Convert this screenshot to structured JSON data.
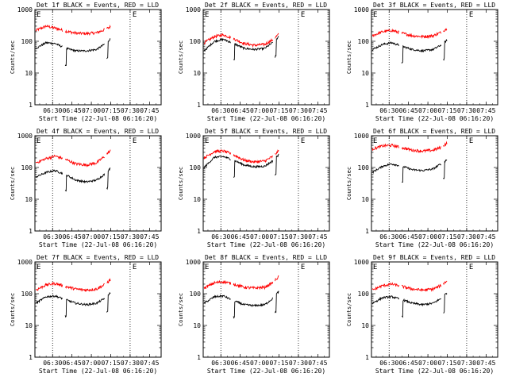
{
  "figure": {
    "ytick_labels": [
      "1",
      "10",
      "100",
      "1000"
    ],
    "xtick_labels": [
      "06:30",
      "06:45",
      "07:00",
      "07:15",
      "07:30",
      "07:45"
    ],
    "ylabel": "Counts/sec",
    "xlabel": "Start Time (22-Jul-08 06:16:20)",
    "e_marker": "E"
  },
  "colors": {
    "events": "#000000",
    "lld": "#ff0000",
    "frame": "#000000"
  },
  "chart_data": [
    {
      "type": "line",
      "title": "Det 1f BLACK = Events, RED = LLD",
      "xlabel": "Start Time (22-Jul-08 06:16:20)",
      "ylabel": "Counts/sec",
      "yscale": "log",
      "ylim": [
        1,
        1000
      ],
      "xlim": [
        "06:16:20",
        "07:54"
      ],
      "vlines": [
        "06:30",
        "07:30"
      ],
      "series": [
        {
          "name": "LLD",
          "color": "#ff0000",
          "x": [
            "06:17",
            "06:25",
            "06:32",
            "06:40",
            "06:48",
            "06:56",
            "07:04",
            "07:10",
            "07:15"
          ],
          "values": [
            220,
            300,
            260,
            210,
            180,
            175,
            185,
            230,
            290
          ]
        },
        {
          "name": "Events",
          "color": "#000000",
          "x": [
            "06:17",
            "06:25",
            "06:32",
            "06:40",
            "06:48",
            "06:56",
            "07:04",
            "07:10",
            "07:15"
          ],
          "values": [
            60,
            90,
            85,
            60,
            50,
            50,
            55,
            80,
            120
          ]
        }
      ]
    },
    {
      "type": "line",
      "title": "Det 2f BLACK = Events, RED = LLD",
      "xlabel": "Start Time (22-Jul-08 06:16:20)",
      "ylabel": "Counts/sec",
      "yscale": "log",
      "ylim": [
        1,
        1000
      ],
      "xlim": [
        "06:16:20",
        "07:54"
      ],
      "vlines": [
        "06:30",
        "07:30"
      ],
      "series": [
        {
          "name": "LLD",
          "color": "#ff0000",
          "x": [
            "06:17",
            "06:25",
            "06:32",
            "06:40",
            "06:48",
            "06:56",
            "07:04",
            "07:10",
            "07:15"
          ],
          "values": [
            90,
            140,
            160,
            120,
            85,
            75,
            80,
            110,
            170
          ]
        },
        {
          "name": "Events",
          "color": "#000000",
          "x": [
            "06:17",
            "06:25",
            "06:32",
            "06:40",
            "06:48",
            "06:56",
            "07:04",
            "07:10",
            "07:15"
          ],
          "values": [
            50,
            100,
            115,
            85,
            60,
            55,
            60,
            90,
            140
          ]
        }
      ]
    },
    {
      "type": "line",
      "title": "Det 3f BLACK = Events, RED = LLD",
      "xlabel": "Start Time (22-Jul-08 06:16:20)",
      "ylabel": "Counts/sec",
      "yscale": "log",
      "ylim": [
        1,
        1000
      ],
      "xlim": [
        "06:16:20",
        "07:54"
      ],
      "vlines": [
        "06:30",
        "07:30"
      ],
      "series": [
        {
          "name": "LLD",
          "color": "#ff0000",
          "x": [
            "06:17",
            "06:25",
            "06:32",
            "06:40",
            "06:48",
            "06:56",
            "07:04",
            "07:10",
            "07:15"
          ],
          "values": [
            150,
            200,
            220,
            180,
            150,
            140,
            150,
            190,
            260
          ]
        },
        {
          "name": "Events",
          "color": "#000000",
          "x": [
            "06:17",
            "06:25",
            "06:32",
            "06:40",
            "06:48",
            "06:56",
            "07:04",
            "07:10",
            "07:15"
          ],
          "values": [
            55,
            80,
            90,
            70,
            55,
            50,
            55,
            75,
            110
          ]
        }
      ]
    },
    {
      "type": "line",
      "title": "Det 4f BLACK = Events, RED = LLD",
      "xlabel": "Start Time (22-Jul-08 06:16:20)",
      "ylabel": "Counts/sec",
      "yscale": "log",
      "ylim": [
        1,
        1000
      ],
      "xlim": [
        "06:16:20",
        "07:54"
      ],
      "vlines": [
        "06:30",
        "07:30"
      ],
      "series": [
        {
          "name": "LLD",
          "color": "#ff0000",
          "x": [
            "06:17",
            "06:25",
            "06:32",
            "06:40",
            "06:48",
            "06:56",
            "07:04",
            "07:10",
            "07:15"
          ],
          "values": [
            140,
            190,
            230,
            180,
            130,
            120,
            140,
            220,
            350
          ]
        },
        {
          "name": "Events",
          "color": "#000000",
          "x": [
            "06:17",
            "06:25",
            "06:32",
            "06:40",
            "06:48",
            "06:56",
            "07:04",
            "07:10",
            "07:15"
          ],
          "values": [
            50,
            70,
            80,
            60,
            40,
            35,
            40,
            60,
            100
          ]
        }
      ]
    },
    {
      "type": "line",
      "title": "Det 5f BLACK = Events, RED = LLD",
      "xlabel": "Start Time (22-Jul-08 06:16:20)",
      "ylabel": "Counts/sec",
      "yscale": "log",
      "ylim": [
        1,
        1000
      ],
      "xlim": [
        "06:16:20",
        "07:54"
      ],
      "vlines": [
        "06:30",
        "07:30"
      ],
      "series": [
        {
          "name": "LLD",
          "color": "#ff0000",
          "x": [
            "06:17",
            "06:25",
            "06:32",
            "06:40",
            "06:48",
            "06:56",
            "07:04",
            "07:10",
            "07:15"
          ],
          "values": [
            200,
            320,
            330,
            250,
            170,
            150,
            160,
            220,
            340
          ]
        },
        {
          "name": "Events",
          "color": "#000000",
          "x": [
            "06:17",
            "06:25",
            "06:32",
            "06:40",
            "06:48",
            "06:56",
            "07:04",
            "07:10",
            "07:15"
          ],
          "values": [
            100,
            210,
            220,
            170,
            120,
            105,
            110,
            160,
            260
          ]
        }
      ]
    },
    {
      "type": "line",
      "title": "Det 6f BLACK = Events, RED = LLD",
      "xlabel": "Start Time (22-Jul-08 06:16:20)",
      "ylabel": "Counts/sec",
      "yscale": "log",
      "ylim": [
        1,
        1000
      ],
      "xlim": [
        "06:16:20",
        "07:54"
      ],
      "vlines": [
        "06:30",
        "07:30"
      ],
      "series": [
        {
          "name": "LLD",
          "color": "#ff0000",
          "x": [
            "06:17",
            "06:25",
            "06:32",
            "06:40",
            "06:48",
            "06:56",
            "07:04",
            "07:10",
            "07:15"
          ],
          "values": [
            380,
            480,
            500,
            420,
            350,
            330,
            350,
            430,
            600
          ]
        },
        {
          "name": "Events",
          "color": "#000000",
          "x": [
            "06:17",
            "06:25",
            "06:32",
            "06:40",
            "06:48",
            "06:56",
            "07:04",
            "07:10",
            "07:15"
          ],
          "values": [
            70,
            110,
            130,
            110,
            85,
            80,
            90,
            130,
            180
          ]
        }
      ]
    },
    {
      "type": "line",
      "title": "Det 7f BLACK = Events, RED = LLD",
      "xlabel": "Start Time (22-Jul-08 06:16:20)",
      "ylabel": "Counts/sec",
      "yscale": "log",
      "ylim": [
        1,
        1000
      ],
      "xlim": [
        "06:16:20",
        "07:54"
      ],
      "vlines": [
        "06:30",
        "07:30"
      ],
      "series": [
        {
          "name": "LLD",
          "color": "#ff0000",
          "x": [
            "06:17",
            "06:25",
            "06:32",
            "06:40",
            "06:48",
            "06:56",
            "07:04",
            "07:10",
            "07:15"
          ],
          "values": [
            130,
            190,
            210,
            170,
            140,
            130,
            140,
            190,
            280
          ]
        },
        {
          "name": "Events",
          "color": "#000000",
          "x": [
            "06:17",
            "06:25",
            "06:32",
            "06:40",
            "06:48",
            "06:56",
            "07:04",
            "07:10",
            "07:15"
          ],
          "values": [
            50,
            80,
            85,
            65,
            50,
            45,
            50,
            70,
            110
          ]
        }
      ]
    },
    {
      "type": "line",
      "title": "Det 8f BLACK = Events, RED = LLD",
      "xlabel": "Start Time (22-Jul-08 06:16:20)",
      "ylabel": "Counts/sec",
      "yscale": "log",
      "ylim": [
        1,
        1000
      ],
      "xlim": [
        "06:16:20",
        "07:54"
      ],
      "vlines": [
        "06:30",
        "07:30"
      ],
      "series": [
        {
          "name": "LLD",
          "color": "#ff0000",
          "x": [
            "06:17",
            "06:25",
            "06:32",
            "06:40",
            "06:48",
            "06:56",
            "07:04",
            "07:10",
            "07:15"
          ],
          "values": [
            150,
            220,
            240,
            200,
            160,
            150,
            160,
            220,
            350
          ]
        },
        {
          "name": "Events",
          "color": "#000000",
          "x": [
            "06:17",
            "06:25",
            "06:32",
            "06:40",
            "06:48",
            "06:56",
            "07:04",
            "07:10",
            "07:15"
          ],
          "values": [
            50,
            80,
            85,
            60,
            45,
            42,
            45,
            70,
            120
          ]
        }
      ]
    },
    {
      "type": "line",
      "title": "Det 9f BLACK = Events, RED = LLD",
      "xlabel": "Start Time (22-Jul-08 06:16:20)",
      "ylabel": "Counts/sec",
      "yscale": "log",
      "ylim": [
        1,
        1000
      ],
      "xlim": [
        "06:16:20",
        "07:54"
      ],
      "vlines": [
        "06:30",
        "07:30"
      ],
      "series": [
        {
          "name": "LLD",
          "color": "#ff0000",
          "x": [
            "06:17",
            "06:25",
            "06:32",
            "06:40",
            "06:48",
            "06:56",
            "07:04",
            "07:10",
            "07:15"
          ],
          "values": [
            130,
            180,
            200,
            170,
            140,
            130,
            140,
            180,
            260
          ]
        },
        {
          "name": "Events",
          "color": "#000000",
          "x": [
            "06:17",
            "06:25",
            "06:32",
            "06:40",
            "06:48",
            "06:56",
            "07:04",
            "07:10",
            "07:15"
          ],
          "values": [
            50,
            75,
            80,
            65,
            50,
            45,
            50,
            70,
            110
          ]
        }
      ]
    }
  ]
}
